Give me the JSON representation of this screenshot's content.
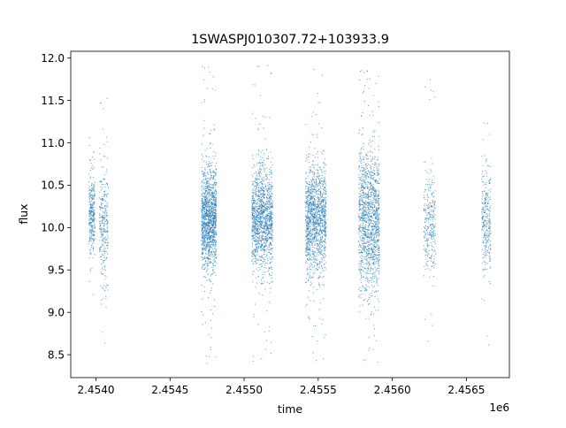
{
  "chart_data": {
    "type": "scatter",
    "title": "1SWASPJ010307.72+103933.9",
    "xlabel": "time",
    "ylabel": "flux",
    "x_offset_label": "1e6",
    "x_scale_factor": 1000000,
    "xlim": [
      2.45383,
      2.45679
    ],
    "ylim": [
      8.23,
      12.08
    ],
    "x_ticks": [
      2.454,
      2.4545,
      2.455,
      2.4555,
      2.456,
      2.4565
    ],
    "x_tick_labels": [
      "2.4540",
      "2.4545",
      "2.4550",
      "2.4555",
      "2.4560",
      "2.4565"
    ],
    "y_ticks": [
      8.5,
      9.0,
      9.5,
      10.0,
      10.5,
      11.0,
      11.5,
      12.0
    ],
    "y_tick_labels": [
      "8.5",
      "9.0",
      "9.5",
      "10.0",
      "10.5",
      "11.0",
      "11.5",
      "12.0"
    ],
    "grid": false,
    "legend": "none",
    "marker_color": "#1f77b4",
    "series": [
      {
        "values_summary": "dense clusters of flux measurements, x given in units of 1e6",
        "clusters": [
          {
            "x_center": 2.45397,
            "x_halfwidth": 2e-05,
            "y_center": 10.15,
            "y_spread": 0.25,
            "y_min": 9.15,
            "y_max": 11.1
          },
          {
            "x_center": 2.45405,
            "x_halfwidth": 3e-05,
            "y_center": 10.0,
            "y_spread": 0.35,
            "y_min": 8.52,
            "y_max": 11.72
          },
          {
            "x_center": 2.45476,
            "x_halfwidth": 5e-05,
            "y_center": 10.1,
            "y_spread": 0.3,
            "y_min": 8.4,
            "y_max": 11.95
          },
          {
            "x_center": 2.45512,
            "x_halfwidth": 7e-05,
            "y_center": 10.1,
            "y_spread": 0.32,
            "y_min": 8.4,
            "y_max": 11.95
          },
          {
            "x_center": 2.45548,
            "x_halfwidth": 7e-05,
            "y_center": 10.1,
            "y_spread": 0.32,
            "y_min": 8.4,
            "y_max": 11.95
          },
          {
            "x_center": 2.45584,
            "x_halfwidth": 7e-05,
            "y_center": 10.1,
            "y_spread": 0.42,
            "y_min": 8.4,
            "y_max": 11.95
          },
          {
            "x_center": 2.45625,
            "x_halfwidth": 4e-05,
            "y_center": 10.05,
            "y_spread": 0.27,
            "y_min": 8.45,
            "y_max": 11.85
          },
          {
            "x_center": 2.45663,
            "x_halfwidth": 3e-05,
            "y_center": 10.1,
            "y_spread": 0.27,
            "y_min": 8.5,
            "y_max": 11.65
          }
        ]
      }
    ]
  }
}
